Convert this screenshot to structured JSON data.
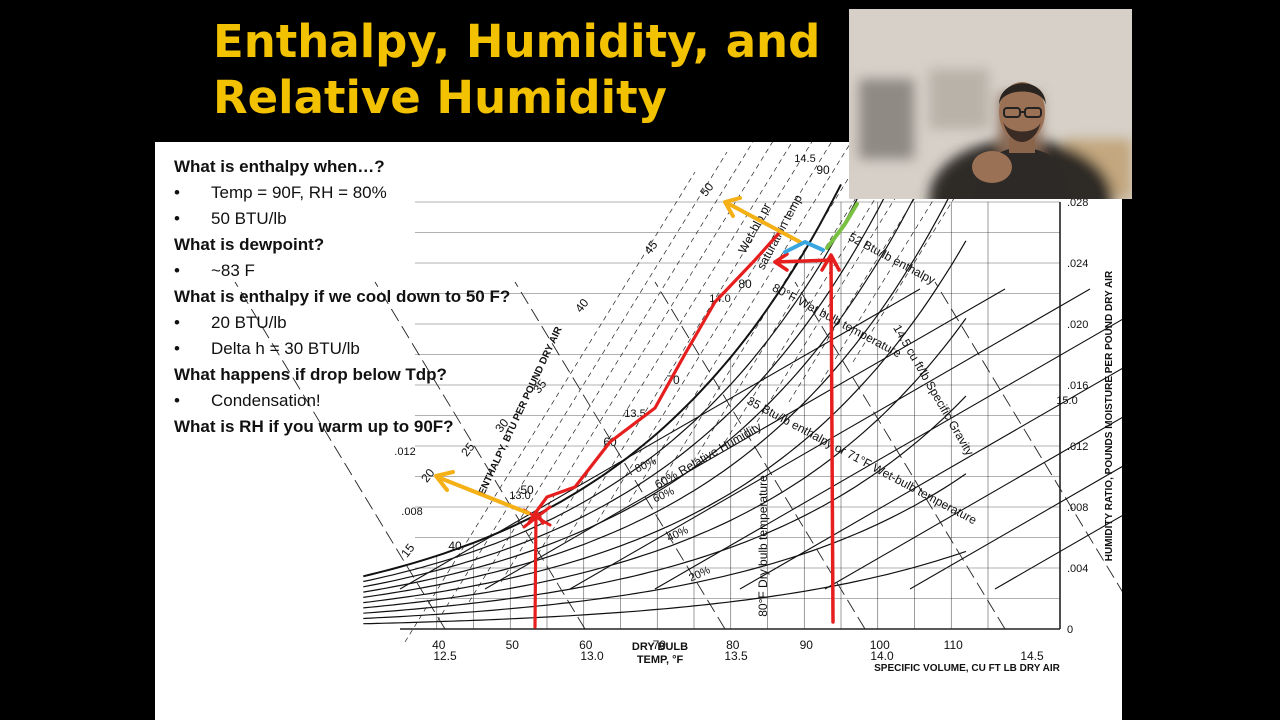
{
  "slide": {
    "title": "Enthalpy, Humidity, and Relative Humidity"
  },
  "questions": [
    {
      "q": "What is enthalpy when…?",
      "bullets": [
        "Temp = 90F, RH = 80%",
        "50 BTU/lb"
      ]
    },
    {
      "q": "What is dewpoint?",
      "bullets": [
        "~83 F"
      ]
    },
    {
      "q": "What is enthalpy if we cool down to 50 F?",
      "bullets": [
        "20 BTU/lb",
        "Delta h = 30 BTU/lb"
      ]
    },
    {
      "q": "What happens if drop below Tdp?",
      "bullets": [
        "Condensation!"
      ]
    },
    {
      "q": "What is RH if you warm up to 90F?",
      "bullets": []
    }
  ],
  "bullet_glyph": "•",
  "chart": {
    "x_ticks": [
      "40",
      "50",
      "60",
      "70",
      "80",
      "90",
      "100",
      "110"
    ],
    "x_axis_label_1": "DRY BULB",
    "x_axis_label_2": "TEMP, °F",
    "y_ticks": [
      ".028",
      ".024",
      ".020",
      ".016",
      ".012",
      ".008",
      ".004",
      "0"
    ],
    "y_axis_label": "HUMIDITY RATIO, POUNDS MOISTURE PER POUND DRY AIR",
    "specific_volume_ticks": [
      "12.5",
      "13.0",
      "13.5",
      "14.0",
      "14.5"
    ],
    "specific_volume_label": "SPECIFIC VOLUME, CU FT LB DRY AIR",
    "enthalpy_ticks": [
      "15",
      "20",
      "25",
      "30",
      "35",
      "40",
      "45",
      "50"
    ],
    "enthalpy_axis_label": "ENTHALPY, BTU PER POUND DRY AIR",
    "rh_labels": [
      "80%",
      "60%",
      "40%",
      "20%"
    ],
    "saturation_temp_labels": [
      "40",
      "50",
      "60",
      "70",
      "80",
      "90"
    ],
    "vol_line_labels": [
      "13.0",
      "13.5",
      "14.0",
      "14.5",
      "15.0"
    ],
    "left_scale_labels": [
      ".012",
      ".008"
    ],
    "annotations": {
      "wet_bulb": "Wet-blb pr",
      "saturation_temp": "saturation temp",
      "enthalpy_52": "52 Btu/lb enthalpy",
      "wet_bulb_80": "80°F Wet bulb temperature",
      "specific_vol": "14.5 cu ft/lb Specific Gravity",
      "enthalpy_35": "35 Btu/lb enthalpy or 71°F Wet-bulb temperature",
      "rh_60": "60% Relative Humidity",
      "dry_bulb": "80°F Dry bulb temperature"
    },
    "colors": {
      "red": "#e61e1e",
      "orange": "#f5b016",
      "blue": "#3aa6e0",
      "green": "#7ac143"
    }
  }
}
